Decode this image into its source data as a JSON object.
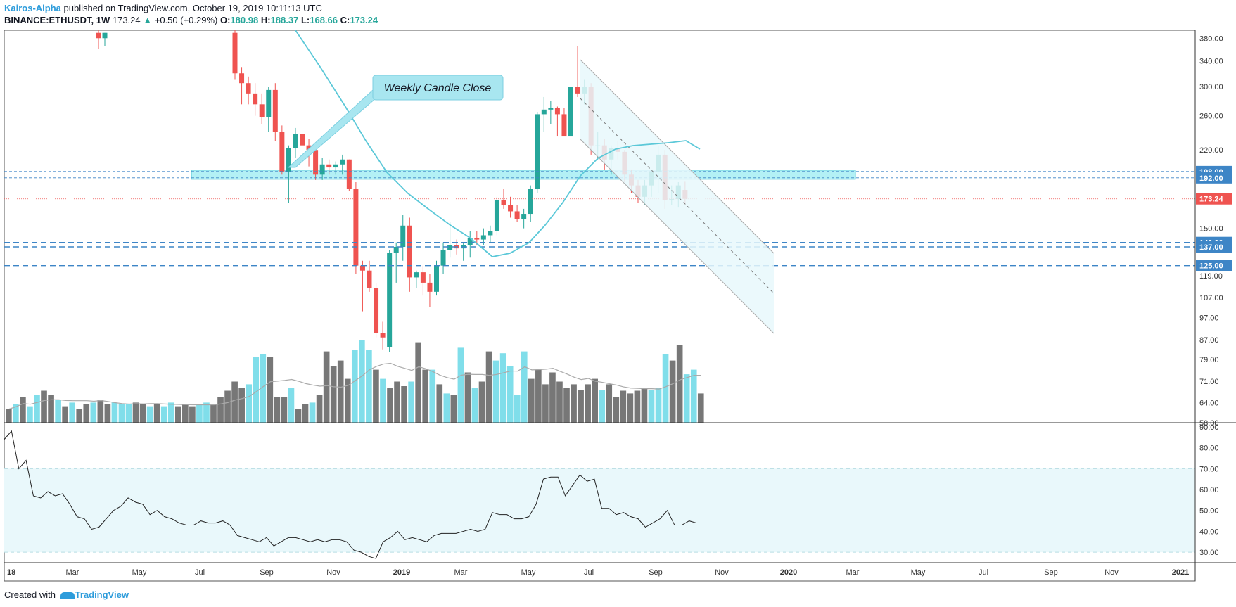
{
  "header": {
    "author": "Kairos-Alpha",
    "published": "published on TradingView.com, October 19, 2019 10:11:13 UTC",
    "symbol": "BINANCE:ETHUSDT, 1W",
    "last": "173.24",
    "change_arrow": "▲",
    "change": "+0.50 (+0.29%)",
    "o_label": "O:",
    "o": "180.98",
    "h_label": "H:",
    "h": "188.37",
    "l_label": "L:",
    "l": "168.66",
    "c_label": "C:",
    "c": "173.24"
  },
  "footer": {
    "created_with": "Created with",
    "logo_text": "TradingView",
    "logo_icon": "tradingview-logo-icon"
  },
  "colors": {
    "up": "#26a69a",
    "down": "#ef5350",
    "vol_up": "#80deea",
    "vol_down": "#777777",
    "ma": "#5bc8d8",
    "vol_ma": "#aaaaaa",
    "level": "#3d85c6",
    "zone": "#b3f0f5",
    "rsi_band": "#e9f8fb",
    "price_line": "#ef5350"
  },
  "annotation": {
    "text": "Weekly Candle Close"
  },
  "chart_data": {
    "type": "candlestick",
    "timeframe": "1W",
    "price_scale": "log",
    "ylim": [
      58,
      395
    ],
    "y_ticks": [
      "380.00",
      "340.00",
      "300.00",
      "260.00",
      "220.00",
      "150.00",
      "119.00",
      "107.00",
      "97.00",
      "87.00",
      "79.00",
      "71.00",
      "64.00",
      "58.00"
    ],
    "price_labels": [
      {
        "text": "198.00",
        "type": "level"
      },
      {
        "text": "192.00",
        "type": "level"
      },
      {
        "text": "173.24",
        "type": "last"
      },
      {
        "text": "140.00",
        "type": "level"
      },
      {
        "text": "137.00",
        "type": "level"
      },
      {
        "text": "125.00",
        "type": "level"
      }
    ],
    "x_ticks": [
      "18",
      "Mar",
      "May",
      "Jul",
      "Sep",
      "Nov",
      "2019",
      "Mar",
      "May",
      "Jul",
      "Sep",
      "Nov",
      "2020",
      "Mar",
      "May",
      "Jul",
      "Sep",
      "Nov",
      "2021"
    ],
    "horizontal_levels": [
      198,
      192,
      140,
      137,
      125
    ],
    "support_zone": [
      192,
      198
    ],
    "last_price": 173.24,
    "candles_open_high_low_close": [
      [
        390,
        400,
        360,
        380
      ],
      [
        380,
        390,
        365,
        390
      ],
      [
        390,
        420,
        310,
        320
      ],
      [
        320,
        330,
        275,
        305
      ],
      [
        305,
        315,
        275,
        290
      ],
      [
        290,
        305,
        260,
        275
      ],
      [
        275,
        290,
        250,
        258
      ],
      [
        258,
        300,
        240,
        295
      ],
      [
        295,
        305,
        230,
        240
      ],
      [
        240,
        248,
        195,
        198
      ],
      [
        198,
        225,
        170,
        222
      ],
      [
        222,
        245,
        212,
        238
      ],
      [
        238,
        242,
        218,
        225
      ],
      [
        225,
        232,
        203,
        220
      ],
      [
        220,
        222,
        190,
        195
      ],
      [
        195,
        212,
        190,
        205
      ],
      [
        205,
        210,
        195,
        202
      ],
      [
        202,
        208,
        195,
        205
      ],
      [
        205,
        215,
        195,
        210
      ],
      [
        210,
        210,
        180,
        182
      ],
      [
        182,
        188,
        120,
        125
      ],
      [
        125,
        128,
        100,
        122
      ],
      [
        122,
        128,
        110,
        112
      ],
      [
        112,
        115,
        88,
        90
      ],
      [
        90,
        95,
        83,
        88
      ],
      [
        84,
        135,
        82,
        133
      ],
      [
        133,
        140,
        115,
        137
      ],
      [
        137,
        160,
        128,
        152
      ],
      [
        152,
        158,
        110,
        118
      ],
      [
        118,
        122,
        112,
        121
      ],
      [
        121,
        125,
        108,
        115
      ],
      [
        115,
        120,
        102,
        110
      ],
      [
        110,
        128,
        108,
        125
      ],
      [
        125,
        140,
        120,
        135
      ],
      [
        135,
        155,
        130,
        138
      ],
      [
        138,
        142,
        132,
        136
      ],
      [
        136,
        140,
        128,
        138
      ],
      [
        138,
        148,
        130,
        143
      ],
      [
        143,
        148,
        138,
        142
      ],
      [
        142,
        150,
        138,
        145
      ],
      [
        145,
        152,
        140,
        148
      ],
      [
        148,
        175,
        145,
        172
      ],
      [
        172,
        182,
        165,
        168
      ],
      [
        168,
        175,
        158,
        163
      ],
      [
        163,
        168,
        155,
        157
      ],
      [
        157,
        165,
        150,
        161
      ],
      [
        161,
        185,
        155,
        182
      ],
      [
        182,
        265,
        178,
        262
      ],
      [
        262,
        285,
        240,
        268
      ],
      [
        268,
        280,
        250,
        270
      ],
      [
        270,
        272,
        235,
        262
      ],
      [
        262,
        270,
        240,
        235
      ],
      [
        235,
        325,
        230,
        300
      ],
      [
        300,
        365,
        285,
        290
      ],
      [
        290,
        310,
        275,
        300
      ],
      [
        300,
        305,
        215,
        225
      ],
      [
        225,
        240,
        210,
        225
      ],
      [
        225,
        232,
        200,
        210
      ],
      [
        210,
        225,
        195,
        222
      ],
      [
        222,
        230,
        210,
        218
      ],
      [
        218,
        220,
        188,
        195
      ],
      [
        195,
        200,
        178,
        185
      ],
      [
        185,
        190,
        170,
        175
      ],
      [
        175,
        190,
        168,
        185
      ],
      [
        185,
        200,
        175,
        198
      ],
      [
        198,
        225,
        178,
        215
      ],
      [
        215,
        220,
        165,
        172
      ],
      [
        172,
        185,
        168,
        173
      ],
      [
        173,
        188,
        166,
        185
      ],
      [
        180.98,
        188.37,
        168.66,
        173.24
      ]
    ],
    "candles_start_index": 0,
    "volume_relative": [
      [
        0.15,
        "d"
      ],
      [
        0.2,
        "u"
      ],
      [
        0.28,
        "d"
      ],
      [
        0.18,
        "u"
      ],
      [
        0.3,
        "u"
      ],
      [
        0.35,
        "d"
      ],
      [
        0.3,
        "d"
      ],
      [
        0.25,
        "u"
      ],
      [
        0.18,
        "d"
      ],
      [
        0.22,
        "u"
      ],
      [
        0.15,
        "d"
      ],
      [
        0.2,
        "d"
      ],
      [
        0.22,
        "u"
      ],
      [
        0.25,
        "d"
      ],
      [
        0.2,
        "d"
      ],
      [
        0.22,
        "u"
      ],
      [
        0.2,
        "u"
      ],
      [
        0.2,
        "u"
      ],
      [
        0.22,
        "d"
      ],
      [
        0.2,
        "d"
      ],
      [
        0.18,
        "u"
      ],
      [
        0.2,
        "d"
      ],
      [
        0.18,
        "u"
      ],
      [
        0.22,
        "u"
      ],
      [
        0.18,
        "d"
      ],
      [
        0.2,
        "d"
      ],
      [
        0.18,
        "d"
      ],
      [
        0.2,
        "u"
      ],
      [
        0.22,
        "u"
      ],
      [
        0.2,
        "d"
      ],
      [
        0.28,
        "d"
      ],
      [
        0.35,
        "d"
      ],
      [
        0.45,
        "d"
      ],
      [
        0.38,
        "d"
      ],
      [
        0.42,
        "u"
      ],
      [
        0.72,
        "u"
      ],
      [
        0.75,
        "u"
      ],
      [
        0.72,
        "d"
      ],
      [
        0.28,
        "d"
      ],
      [
        0.28,
        "d"
      ],
      [
        0.38,
        "u"
      ],
      [
        0.15,
        "d"
      ],
      [
        0.2,
        "d"
      ],
      [
        0.22,
        "u"
      ],
      [
        0.3,
        "d"
      ],
      [
        0.78,
        "d"
      ],
      [
        0.62,
        "d"
      ],
      [
        0.68,
        "d"
      ],
      [
        0.48,
        "d"
      ],
      [
        0.8,
        "u"
      ],
      [
        0.9,
        "u"
      ],
      [
        0.8,
        "u"
      ],
      [
        0.58,
        "d"
      ],
      [
        0.48,
        "u"
      ],
      [
        0.38,
        "d"
      ],
      [
        0.45,
        "d"
      ],
      [
        0.4,
        "d"
      ],
      [
        0.45,
        "u"
      ],
      [
        0.88,
        "d"
      ],
      [
        0.58,
        "d"
      ],
      [
        0.58,
        "u"
      ],
      [
        0.42,
        "d"
      ],
      [
        0.32,
        "u"
      ],
      [
        0.3,
        "d"
      ],
      [
        0.82,
        "u"
      ],
      [
        0.55,
        "d"
      ],
      [
        0.38,
        "u"
      ],
      [
        0.45,
        "d"
      ],
      [
        0.78,
        "d"
      ],
      [
        0.68,
        "u"
      ],
      [
        0.76,
        "u"
      ],
      [
        0.62,
        "u"
      ],
      [
        0.3,
        "u"
      ],
      [
        0.78,
        "u"
      ],
      [
        0.48,
        "d"
      ],
      [
        0.58,
        "d"
      ],
      [
        0.42,
        "d"
      ],
      [
        0.55,
        "d"
      ],
      [
        0.45,
        "d"
      ],
      [
        0.38,
        "d"
      ],
      [
        0.42,
        "d"
      ],
      [
        0.36,
        "d"
      ],
      [
        0.42,
        "d"
      ],
      [
        0.48,
        "d"
      ],
      [
        0.36,
        "u"
      ],
      [
        0.42,
        "d"
      ],
      [
        0.28,
        "d"
      ],
      [
        0.35,
        "d"
      ],
      [
        0.32,
        "d"
      ],
      [
        0.35,
        "d"
      ],
      [
        0.38,
        "d"
      ],
      [
        0.36,
        "u"
      ],
      [
        0.38,
        "u"
      ],
      [
        0.75,
        "u"
      ],
      [
        0.68,
        "d"
      ],
      [
        0.85,
        "d"
      ],
      [
        0.53,
        "u"
      ],
      [
        0.58,
        "u"
      ],
      [
        0.32,
        "d"
      ]
    ],
    "rsi": {
      "ylim": [
        25,
        92
      ],
      "overbought": 70,
      "oversold": 30,
      "y_ticks": [
        "90.00",
        "80.00",
        "70.00",
        "60.00",
        "50.00",
        "40.00",
        "30.00"
      ],
      "values": [
        84,
        88,
        70,
        74,
        57,
        56,
        59,
        57,
        58,
        53,
        47,
        46,
        41,
        42,
        46,
        50,
        52,
        56,
        54,
        53,
        48,
        50,
        47,
        46,
        44,
        43,
        43,
        45,
        44,
        44,
        45,
        43,
        38,
        37,
        36,
        35,
        37,
        33,
        35,
        37,
        37,
        36,
        35,
        36,
        35,
        36,
        36,
        35,
        31,
        30,
        28,
        27,
        35,
        37,
        40,
        36,
        37,
        36,
        35,
        38,
        39,
        39,
        39,
        40,
        41,
        40,
        41,
        49,
        48,
        48,
        46,
        46,
        47,
        53,
        65,
        66,
        66,
        57,
        62,
        67,
        64,
        65,
        51,
        51,
        48,
        49,
        47,
        46,
        42,
        44,
        46,
        50,
        43,
        43,
        45,
        44
      ]
    },
    "moving_average": {
      "name": "",
      "values_by_candle": []
    }
  }
}
